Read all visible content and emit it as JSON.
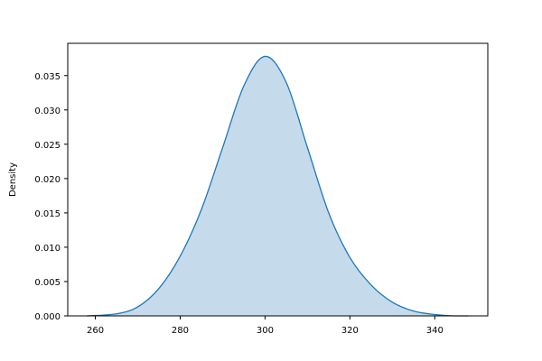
{
  "chart_data": {
    "type": "area",
    "title": "",
    "xlabel": "",
    "ylabel": "Density",
    "xlim": [
      253.5,
      352.5
    ],
    "ylim": [
      0,
      0.0397
    ],
    "x_ticks": [
      260,
      280,
      300,
      320,
      340
    ],
    "y_ticks": [
      0.0,
      0.005,
      0.01,
      0.015,
      0.02,
      0.025,
      0.03,
      0.035
    ],
    "x_tick_labels": [
      "260",
      "280",
      "300",
      "320",
      "340"
    ],
    "y_tick_labels": [
      "0.000",
      "0.005",
      "0.010",
      "0.015",
      "0.020",
      "0.025",
      "0.030",
      "0.035"
    ],
    "grid": false,
    "legend": "none",
    "colors": {
      "line": "#1f77b4",
      "fill": "#c5dbec",
      "axes": "#000000"
    },
    "series": [
      {
        "x": [
          258,
          265,
          270,
          275,
          280,
          285,
          290,
          295,
          300,
          305,
          310,
          315,
          320,
          325,
          330,
          335,
          340,
          345,
          348
        ],
        "y": [
          0.0,
          0.0003,
          0.0013,
          0.004,
          0.0087,
          0.0155,
          0.0245,
          0.0335,
          0.0378,
          0.034,
          0.0245,
          0.015,
          0.0085,
          0.0045,
          0.002,
          0.0007,
          0.0002,
          0.0,
          0.0
        ]
      }
    ]
  }
}
